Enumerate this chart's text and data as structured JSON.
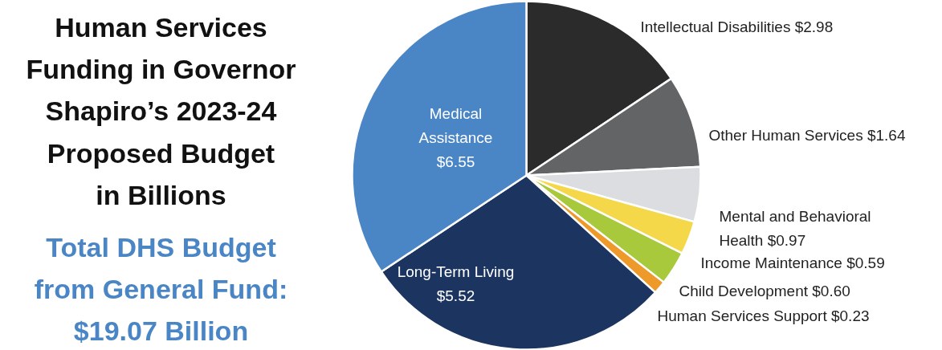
{
  "chart_data": {
    "type": "pie",
    "title": "Human Services\nFunding in Governor\nShapiro’s 2023-24\nProposed Budget\nin Billions",
    "annotations": [
      "Total DHS Budget\nfrom General Fund:\n$19.07 Billion"
    ],
    "categories": [
      "Intellectual Disabilities",
      "Other Human Services",
      "Mental and Behavioral Health",
      "Income Maintenance",
      "Child Development",
      "Human Services Support",
      "Long-Term Living",
      "Medical Assistance"
    ],
    "values": [
      2.98,
      1.64,
      0.97,
      0.59,
      0.6,
      0.23,
      5.52,
      6.55
    ],
    "value_labels": [
      "$2.98",
      "$1.64",
      "$0.97",
      "$0.59",
      "$0.60",
      "$0.23",
      "$5.52",
      "$6.55"
    ],
    "colors": [
      "#2b2b2b",
      "#636466",
      "#dcdde0",
      "#f5d84a",
      "#a9c93c",
      "#ee9a2a",
      "#1c3560",
      "#4a86c5"
    ]
  }
}
